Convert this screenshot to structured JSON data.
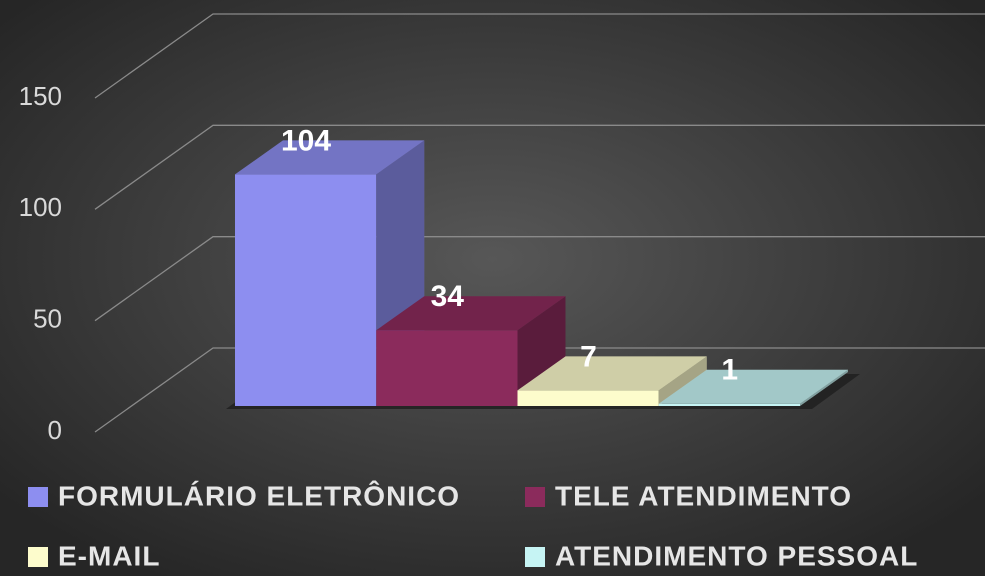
{
  "chart_data": {
    "type": "bar3d",
    "series": [
      {
        "name": "FORMULÁRIO ELETRÔNICO",
        "color": "#8d8ef0",
        "values": [
          104
        ]
      },
      {
        "name": "TELE ATENDIMENTO",
        "color": "#8b2b5c",
        "values": [
          34
        ]
      },
      {
        "name": "E-MAIL",
        "color": "#fdfccc",
        "values": [
          7
        ]
      },
      {
        "name": "ATENDIMENTO PESSOAL",
        "color": "#c6f4f4",
        "values": [
          1
        ]
      }
    ],
    "ylim": [
      0,
      150
    ],
    "yticks": [
      0,
      50,
      100,
      150
    ],
    "grid": true
  }
}
